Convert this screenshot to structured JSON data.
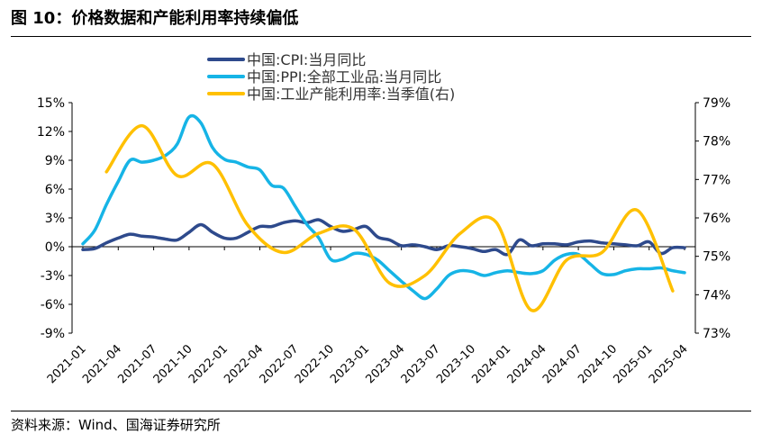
{
  "figure": {
    "title": "图 10：价格数据和产能利用率持续偏低",
    "source": "资料来源：Wind、国海证券研究所"
  },
  "chart_data": {
    "type": "line",
    "title": "",
    "xlabel": "",
    "ylabel": "",
    "legend_position": "top-center",
    "grid": false,
    "x_ticks": [
      "2021-01",
      "2021-04",
      "2021-07",
      "2021-10",
      "2022-01",
      "2022-04",
      "2022-07",
      "2022-10",
      "2023-01",
      "2023-04",
      "2023-07",
      "2023-10",
      "2024-01",
      "2024-04",
      "2024-07",
      "2024-10",
      "2025-01",
      "2025-04"
    ],
    "y_left": {
      "ylim": [
        -9,
        15
      ],
      "ticks": [
        "-9%",
        "-6%",
        "-3%",
        "0%",
        "3%",
        "6%",
        "9%",
        "12%",
        "15%"
      ]
    },
    "y_right": {
      "ylim": [
        73,
        79
      ],
      "ticks": [
        "73%",
        "74%",
        "75%",
        "76%",
        "77%",
        "78%",
        "79%"
      ]
    },
    "series": [
      {
        "name": "中国:CPI:当月同比",
        "axis": "left",
        "color": "#2E4A8C",
        "x": [
          "2021-01",
          "2021-02",
          "2021-03",
          "2021-04",
          "2021-05",
          "2021-06",
          "2021-07",
          "2021-08",
          "2021-09",
          "2021-10",
          "2021-11",
          "2021-12",
          "2022-01",
          "2022-02",
          "2022-03",
          "2022-04",
          "2022-05",
          "2022-06",
          "2022-07",
          "2022-08",
          "2022-09",
          "2022-10",
          "2022-11",
          "2022-12",
          "2023-01",
          "2023-02",
          "2023-03",
          "2023-04",
          "2023-05",
          "2023-06",
          "2023-07",
          "2023-08",
          "2023-09",
          "2023-10",
          "2023-11",
          "2023-12",
          "2024-01",
          "2024-02",
          "2024-03",
          "2024-04",
          "2024-05",
          "2024-06",
          "2024-07",
          "2024-08",
          "2024-09",
          "2024-10",
          "2024-11",
          "2024-12",
          "2025-01",
          "2025-02",
          "2025-03",
          "2025-04"
        ],
        "values": [
          -0.3,
          -0.2,
          0.4,
          0.9,
          1.3,
          1.1,
          1.0,
          0.8,
          0.7,
          1.5,
          2.3,
          1.5,
          0.9,
          0.9,
          1.5,
          2.1,
          2.1,
          2.5,
          2.7,
          2.5,
          2.8,
          2.1,
          1.6,
          1.8,
          2.1,
          1.0,
          0.7,
          0.1,
          0.2,
          0.0,
          -0.3,
          0.1,
          0.0,
          -0.2,
          -0.5,
          -0.3,
          -0.8,
          0.7,
          0.1,
          0.3,
          0.3,
          0.2,
          0.5,
          0.6,
          0.4,
          0.3,
          0.2,
          0.1,
          0.5,
          -0.7,
          -0.1,
          -0.1
        ]
      },
      {
        "name": "中国:PPI:全部工业品:当月同比",
        "axis": "left",
        "color": "#16B4E6",
        "x": [
          "2021-01",
          "2021-02",
          "2021-03",
          "2021-04",
          "2021-05",
          "2021-06",
          "2021-07",
          "2021-08",
          "2021-09",
          "2021-10",
          "2021-11",
          "2021-12",
          "2022-01",
          "2022-02",
          "2022-03",
          "2022-04",
          "2022-05",
          "2022-06",
          "2022-07",
          "2022-08",
          "2022-09",
          "2022-10",
          "2022-11",
          "2022-12",
          "2023-01",
          "2023-02",
          "2023-03",
          "2023-04",
          "2023-05",
          "2023-06",
          "2023-07",
          "2023-08",
          "2023-09",
          "2023-10",
          "2023-11",
          "2023-12",
          "2024-01",
          "2024-02",
          "2024-03",
          "2024-04",
          "2024-05",
          "2024-06",
          "2024-07",
          "2024-08",
          "2024-09",
          "2024-10",
          "2024-11",
          "2024-12",
          "2025-01",
          "2025-02",
          "2025-03",
          "2025-04"
        ],
        "values": [
          0.3,
          1.7,
          4.4,
          6.8,
          9.0,
          8.8,
          9.0,
          9.5,
          10.7,
          13.5,
          12.9,
          10.3,
          9.1,
          8.8,
          8.3,
          8.0,
          6.4,
          6.1,
          4.2,
          2.3,
          0.9,
          -1.3,
          -1.3,
          -0.7,
          -0.8,
          -1.4,
          -2.5,
          -3.6,
          -4.6,
          -5.4,
          -4.4,
          -3.0,
          -2.5,
          -2.6,
          -3.0,
          -2.7,
          -2.5,
          -2.7,
          -2.8,
          -2.5,
          -1.4,
          -0.8,
          -0.8,
          -1.8,
          -2.8,
          -2.9,
          -2.5,
          -2.3,
          -2.3,
          -2.2,
          -2.5,
          -2.7
        ]
      },
      {
        "name": "中国:工业产能利用率:当季值(右)",
        "axis": "right",
        "color": "#FFC000",
        "x": [
          "2021-03",
          "2021-06",
          "2021-09",
          "2021-12",
          "2022-03",
          "2022-06",
          "2022-09",
          "2022-12",
          "2023-03",
          "2023-06",
          "2023-09",
          "2023-12",
          "2024-03",
          "2024-06",
          "2024-09",
          "2024-12",
          "2025-03"
        ],
        "values": [
          77.2,
          78.4,
          77.1,
          77.4,
          75.8,
          75.1,
          75.6,
          75.7,
          74.3,
          74.5,
          75.6,
          75.9,
          73.6,
          74.9,
          75.1,
          76.2,
          74.1
        ]
      }
    ]
  }
}
